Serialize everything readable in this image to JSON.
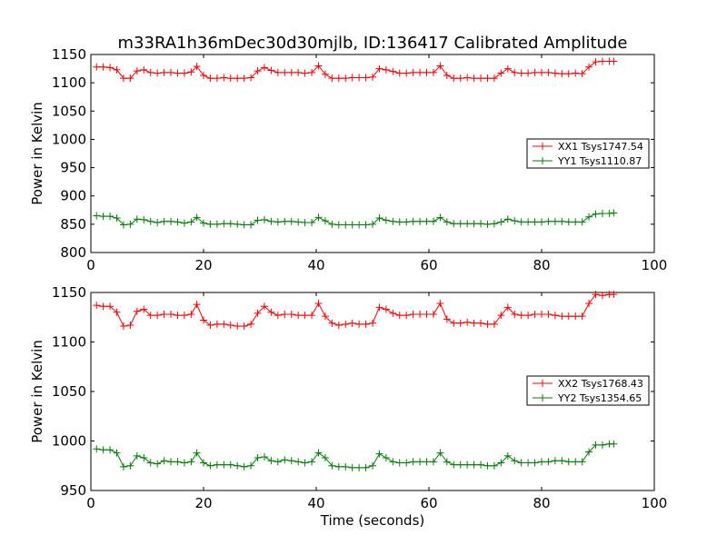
{
  "figure_title": "m33RA1h36mDec30d30mjlb, ID:136417 Calibrated Amplitude",
  "colors": {
    "xx": "#ff0000",
    "yy": "#008000",
    "axes": "#000000",
    "background": "#ffffff"
  },
  "chart_data": [
    {
      "type": "line",
      "title": "m33RA1h36mDec30d30mjlb, ID:136417 Calibrated Amplitude",
      "xlabel": "",
      "ylabel": "Power in Kelvin",
      "xlim": [
        0,
        100
      ],
      "ylim": [
        800,
        1150
      ],
      "xticks": [
        0,
        20,
        40,
        60,
        80,
        100
      ],
      "yticks": [
        800,
        850,
        900,
        950,
        1000,
        1050,
        1100,
        1150
      ],
      "grid": false,
      "legend_position": "center-right",
      "marker": "plus",
      "x": [
        1,
        2.2,
        3.4,
        4.6,
        5.8,
        7,
        8.2,
        9.4,
        10.6,
        11.8,
        13,
        14.2,
        15.4,
        16.6,
        17.8,
        18.8,
        20,
        21.2,
        22.4,
        23.6,
        24.8,
        26,
        27.2,
        28.4,
        29.6,
        30.8,
        32,
        33.2,
        34.4,
        35.6,
        36.8,
        38,
        39.2,
        40.4,
        41.6,
        42.8,
        44,
        45.2,
        46.4,
        47.6,
        48.8,
        50,
        51.2,
        52.4,
        53.6,
        54.8,
        56,
        57.2,
        58.4,
        59.6,
        60.8,
        62,
        63.2,
        64.4,
        65.6,
        66.8,
        68,
        69.2,
        70.4,
        71.6,
        72.8,
        74,
        75.2,
        76.4,
        77.6,
        78.8,
        80,
        81.2,
        82.4,
        83.6,
        84.8,
        86,
        87.2,
        88.4,
        89.6,
        90.8,
        92,
        92.8
      ],
      "series": [
        {
          "name": "XX1 Tsys1747.54",
          "color": "#ff0000",
          "values": [
            1128,
            1128,
            1127,
            1123,
            1108,
            1108,
            1121,
            1123,
            1118,
            1117,
            1118,
            1118,
            1117,
            1117,
            1119,
            1129,
            1113,
            1108,
            1108,
            1109,
            1108,
            1108,
            1108,
            1109,
            1121,
            1127,
            1122,
            1118,
            1118,
            1118,
            1118,
            1117,
            1118,
            1130,
            1115,
            1108,
            1108,
            1108,
            1109,
            1109,
            1109,
            1110,
            1125,
            1123,
            1120,
            1117,
            1117,
            1118,
            1118,
            1118,
            1118,
            1130,
            1113,
            1108,
            1108,
            1109,
            1108,
            1108,
            1108,
            1108,
            1117,
            1125,
            1118,
            1117,
            1117,
            1118,
            1118,
            1118,
            1117,
            1116,
            1116,
            1117,
            1116,
            1128,
            1137,
            1138,
            1138,
            1138
          ]
        },
        {
          "name": "YY1 Tsys1110.87",
          "color": "#008000",
          "values": [
            865,
            864,
            864,
            861,
            849,
            850,
            859,
            858,
            855,
            853,
            855,
            855,
            854,
            852,
            854,
            862,
            852,
            850,
            850,
            851,
            851,
            850,
            849,
            849,
            857,
            858,
            855,
            854,
            855,
            855,
            854,
            853,
            853,
            862,
            856,
            850,
            849,
            849,
            849,
            849,
            849,
            850,
            861,
            857,
            855,
            854,
            854,
            855,
            855,
            855,
            855,
            862,
            854,
            851,
            851,
            851,
            851,
            851,
            850,
            851,
            854,
            859,
            856,
            854,
            854,
            854,
            854,
            855,
            855,
            855,
            854,
            854,
            854,
            863,
            868,
            869,
            869,
            870
          ]
        }
      ]
    },
    {
      "type": "line",
      "title": "",
      "xlabel": "Time (seconds)",
      "ylabel": "Power in Kelvin",
      "xlim": [
        0,
        100
      ],
      "ylim": [
        950,
        1150
      ],
      "xticks": [
        0,
        20,
        40,
        60,
        80,
        100
      ],
      "yticks": [
        950,
        1000,
        1050,
        1100,
        1150
      ],
      "grid": false,
      "legend_position": "center-right",
      "marker": "plus",
      "x": [
        1,
        2.2,
        3.4,
        4.6,
        5.8,
        7,
        8.2,
        9.4,
        10.6,
        11.8,
        13,
        14.2,
        15.4,
        16.6,
        17.8,
        18.8,
        20,
        21.2,
        22.4,
        23.6,
        24.8,
        26,
        27.2,
        28.4,
        29.6,
        30.8,
        32,
        33.2,
        34.4,
        35.6,
        36.8,
        38,
        39.2,
        40.4,
        41.6,
        42.8,
        44,
        45.2,
        46.4,
        47.6,
        48.8,
        50,
        51.2,
        52.4,
        53.6,
        54.8,
        56,
        57.2,
        58.4,
        59.6,
        60.8,
        62,
        63.2,
        64.4,
        65.6,
        66.8,
        68,
        69.2,
        70.4,
        71.6,
        72.8,
        74,
        75.2,
        76.4,
        77.6,
        78.8,
        80,
        81.2,
        82.4,
        83.6,
        84.8,
        86,
        87.2,
        88.4,
        89.6,
        90.8,
        92,
        92.8
      ],
      "series": [
        {
          "name": "XX2 Tsys1768.43",
          "color": "#ff0000",
          "values": [
            1137,
            1136,
            1136,
            1130,
            1116,
            1117,
            1131,
            1133,
            1127,
            1127,
            1128,
            1128,
            1127,
            1127,
            1128,
            1138,
            1122,
            1117,
            1118,
            1118,
            1117,
            1116,
            1116,
            1118,
            1129,
            1136,
            1130,
            1127,
            1128,
            1128,
            1127,
            1127,
            1127,
            1139,
            1126,
            1119,
            1117,
            1118,
            1119,
            1118,
            1118,
            1119,
            1135,
            1133,
            1129,
            1127,
            1127,
            1128,
            1128,
            1128,
            1128,
            1139,
            1123,
            1119,
            1119,
            1120,
            1119,
            1119,
            1118,
            1118,
            1127,
            1135,
            1128,
            1127,
            1127,
            1128,
            1128,
            1128,
            1127,
            1126,
            1126,
            1126,
            1126,
            1139,
            1148,
            1147,
            1148,
            1148
          ]
        },
        {
          "name": "YY2 Tsys1354.65",
          "color": "#008000",
          "values": [
            992,
            991,
            991,
            988,
            974,
            975,
            985,
            983,
            978,
            977,
            980,
            979,
            979,
            978,
            979,
            988,
            978,
            975,
            976,
            976,
            976,
            975,
            974,
            975,
            983,
            984,
            980,
            979,
            981,
            980,
            979,
            978,
            979,
            988,
            983,
            975,
            974,
            974,
            973,
            973,
            973,
            975,
            987,
            983,
            979,
            978,
            978,
            979,
            979,
            979,
            979,
            988,
            979,
            976,
            976,
            976,
            976,
            976,
            975,
            975,
            978,
            985,
            980,
            978,
            978,
            978,
            979,
            979,
            980,
            980,
            979,
            979,
            979,
            989,
            996,
            996,
            997,
            997
          ]
        }
      ]
    }
  ]
}
